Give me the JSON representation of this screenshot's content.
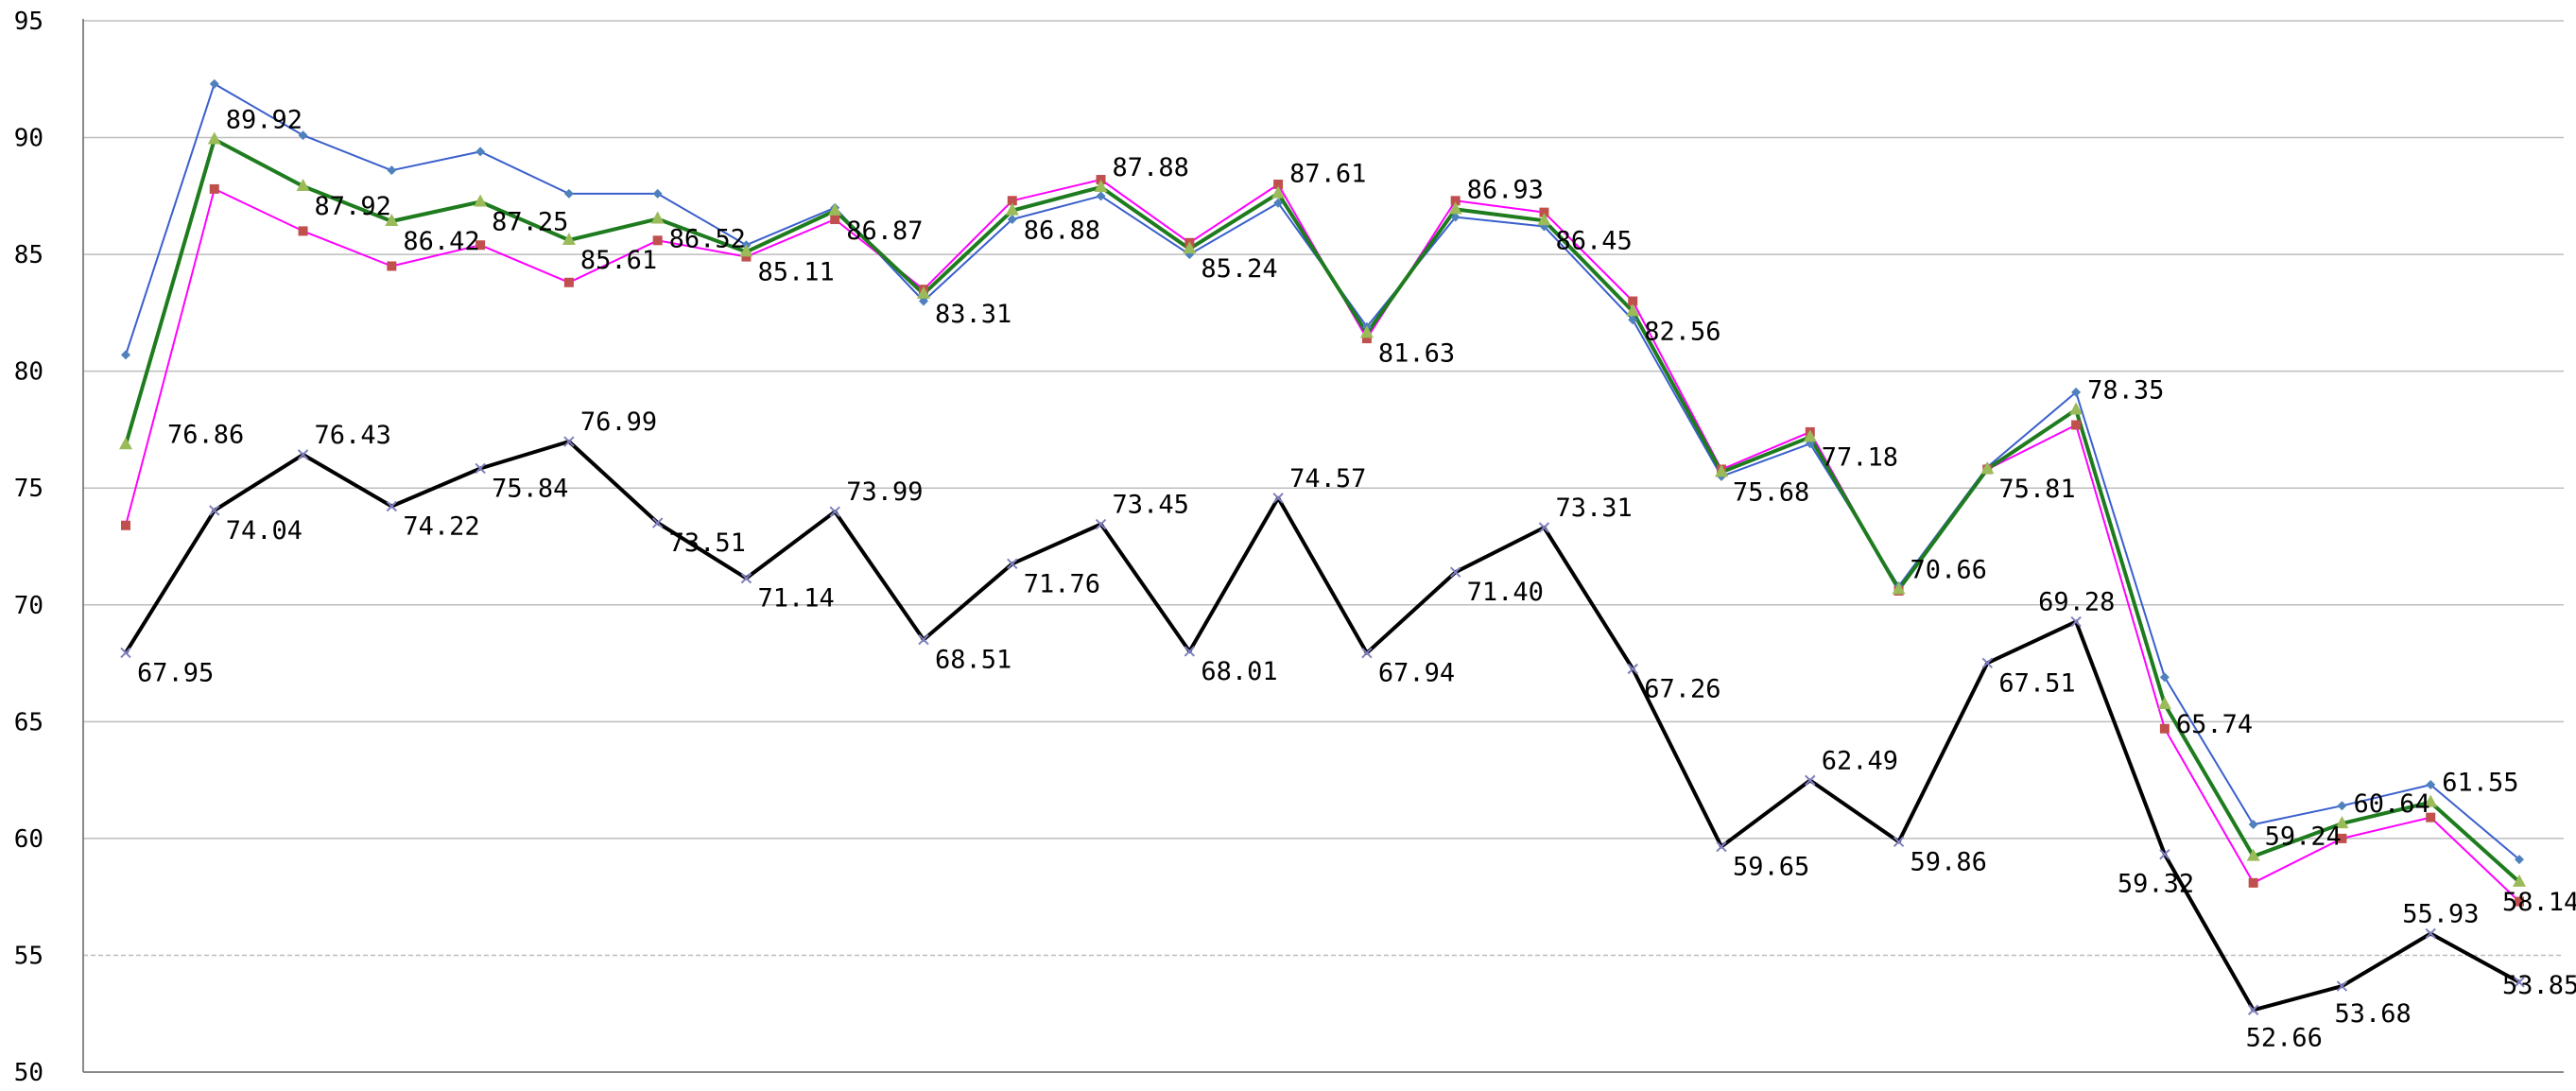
{
  "chart_data": {
    "type": "line",
    "title": "",
    "xlabel": "",
    "ylabel": "",
    "ylim": [
      50,
      95
    ],
    "yticks": [
      50,
      55,
      60,
      65,
      70,
      75,
      80,
      85,
      90,
      95
    ],
    "grid": true,
    "legend": "none",
    "x": [
      1,
      2,
      3,
      4,
      5,
      6,
      7,
      8,
      9,
      10,
      11,
      12,
      13,
      14,
      15,
      16,
      17,
      18,
      19,
      20,
      21,
      22,
      23,
      24,
      25,
      26,
      27,
      28
    ],
    "series": [
      {
        "color": "#3a5fcd",
        "marker": "diamond",
        "line_width": 2,
        "labeled": false,
        "values": [
          80.7,
          92.3,
          90.1,
          88.6,
          89.4,
          87.6,
          87.6,
          85.4,
          87.0,
          83.0,
          86.5,
          87.5,
          85.0,
          87.2,
          81.9,
          86.6,
          86.2,
          82.2,
          75.5,
          76.9,
          70.8,
          75.9,
          79.1,
          66.9,
          60.6,
          61.4,
          62.3,
          59.1
        ]
      },
      {
        "color": "#ff00ff",
        "marker": "square",
        "marker_color": "#c0504d",
        "line_width": 2,
        "labeled": false,
        "values": [
          73.4,
          87.8,
          86.0,
          84.5,
          85.4,
          83.8,
          85.6,
          84.9,
          86.5,
          83.5,
          87.3,
          88.2,
          85.5,
          88.0,
          81.4,
          87.3,
          86.8,
          83.0,
          75.8,
          77.4,
          70.6,
          75.8,
          77.7,
          64.7,
          58.1,
          60.0,
          60.9,
          57.3
        ]
      },
      {
        "color": "#1e7b1e",
        "marker": "triangle",
        "marker_color": "#9bbb59",
        "line_width": 4,
        "labeled": true,
        "values": [
          76.86,
          89.92,
          87.92,
          86.42,
          87.25,
          85.61,
          86.52,
          85.11,
          86.87,
          83.31,
          86.88,
          87.88,
          85.24,
          87.61,
          81.63,
          86.93,
          86.45,
          82.56,
          75.68,
          77.18,
          70.66,
          75.81,
          78.35,
          65.74,
          59.24,
          60.64,
          61.55,
          58.14
        ]
      },
      {
        "color": "#000000",
        "marker": "x",
        "marker_color": "#7f7fbf",
        "line_width": 4,
        "labeled": true,
        "values": [
          67.95,
          74.04,
          76.43,
          74.22,
          75.84,
          76.99,
          73.51,
          71.14,
          73.99,
          68.51,
          71.76,
          73.45,
          68.01,
          74.57,
          67.94,
          71.4,
          73.31,
          67.26,
          59.65,
          62.49,
          59.86,
          67.51,
          69.28,
          59.32,
          52.66,
          53.68,
          55.93,
          53.85
        ]
      }
    ],
    "data_labels": {
      "green": [
        "76.86",
        "89.92",
        "87.92",
        "86.42",
        "87.25",
        "85.61",
        "86.52",
        "85.11",
        "86.87",
        "83.31",
        "86.88",
        "87.88",
        "85.24",
        "87.61",
        "81.63",
        "86.93",
        "86.45",
        "82.56",
        "75.68",
        "77.18",
        "70.66",
        "75.81",
        "78.35",
        "65.74",
        "59.24",
        "60.64",
        "61.55",
        "58.14"
      ],
      "black": [
        "67.95",
        "74.04",
        "76.43",
        "74.22",
        "75.84",
        "76.99",
        "73.51",
        "71.14",
        "73.99",
        "68.51",
        "71.76",
        "73.45",
        "68.01",
        "74.57",
        "67.94",
        "71.40",
        "73.31",
        "67.26",
        "59.65",
        "62.49",
        "59.86",
        "67.51",
        "69.28",
        "59.32",
        "52.66",
        "53.68",
        "55.93",
        "53.85"
      ]
    }
  }
}
